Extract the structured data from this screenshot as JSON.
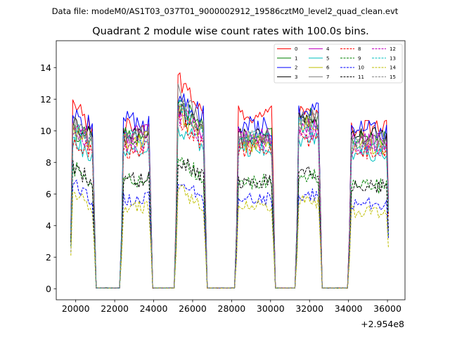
{
  "chart_data": {
    "type": "line",
    "suptitle": "Data file: modeM0/AS1T03_037T01_9000002912_19586cztM0_level2_quad_clean.evt",
    "title": "Quadrant 2 module wise count rates with 100.0s bins.",
    "x_offset_label": "+2.954e8",
    "xlim": [
      19000,
      36900
    ],
    "ylim": [
      -0.7,
      15.7
    ],
    "x_ticks": [
      20000,
      22000,
      24000,
      26000,
      28000,
      30000,
      32000,
      34000,
      36000
    ],
    "x_tick_labels": [
      "20000",
      "22000",
      "24000",
      "26000",
      "28000",
      "30000",
      "32000",
      "34000",
      "36000"
    ],
    "y_ticks": [
      0,
      2,
      4,
      6,
      8,
      10,
      12,
      14
    ],
    "y_tick_labels": [
      "0",
      "2",
      "4",
      "6",
      "8",
      "10",
      "12",
      "14"
    ],
    "bin_seconds": 100,
    "on_intervals": [
      [
        19750,
        20950
      ],
      [
        22350,
        23850
      ],
      [
        25100,
        26700
      ],
      [
        28200,
        30200
      ],
      [
        31300,
        32600
      ],
      [
        34050,
        36050
      ]
    ],
    "legend": {
      "position": "top-right",
      "columns": 4,
      "entries": [
        {
          "label": "0",
          "color": "#ff0000",
          "dash": false
        },
        {
          "label": "1",
          "color": "#008000",
          "dash": false
        },
        {
          "label": "2",
          "color": "#0000ff",
          "dash": false
        },
        {
          "label": "3",
          "color": "#000000",
          "dash": false
        },
        {
          "label": "4",
          "color": "#bf00bf",
          "dash": false
        },
        {
          "label": "5",
          "color": "#00bfbf",
          "dash": false
        },
        {
          "label": "6",
          "color": "#bfbf00",
          "dash": false
        },
        {
          "label": "7",
          "color": "#808080",
          "dash": false
        },
        {
          "label": "8",
          "color": "#ff0000",
          "dash": true
        },
        {
          "label": "9",
          "color": "#008000",
          "dash": true
        },
        {
          "label": "10",
          "color": "#0000ff",
          "dash": true
        },
        {
          "label": "11",
          "color": "#000000",
          "dash": true
        },
        {
          "label": "12",
          "color": "#bf00bf",
          "dash": true
        },
        {
          "label": "13",
          "color": "#00bfbf",
          "dash": true
        },
        {
          "label": "14",
          "color": "#bfbf00",
          "dash": true
        },
        {
          "label": "15",
          "color": "#808080",
          "dash": true
        }
      ]
    },
    "series": [
      {
        "name": "0",
        "color": "#ff0000",
        "dash": false,
        "levels": [
          12.4,
          9.7,
          10.2,
          13.6,
          10.2,
          11.0,
          11.0,
          10.5,
          10.1
        ]
      },
      {
        "name": "1",
        "color": "#008000",
        "dash": false,
        "levels": [
          10.0,
          9.6,
          9.7,
          12.0,
          9.5,
          9.6,
          10.8,
          10.2,
          9.4
        ]
      },
      {
        "name": "2",
        "color": "#0000ff",
        "dash": false,
        "levels": [
          11.0,
          10.2,
          10.6,
          12.4,
          10.4,
          10.3,
          11.2,
          10.6,
          10.1
        ]
      },
      {
        "name": "3",
        "color": "#000000",
        "dash": false,
        "levels": [
          10.6,
          9.4,
          9.6,
          11.4,
          9.5,
          9.6,
          10.5,
          9.9,
          9.7
        ]
      },
      {
        "name": "4",
        "color": "#bf00bf",
        "dash": false,
        "levels": [
          10.3,
          9.4,
          9.8,
          11.5,
          9.3,
          9.6,
          10.2,
          9.8,
          9.3
        ]
      },
      {
        "name": "5",
        "color": "#00bfbf",
        "dash": false,
        "levels": [
          9.2,
          8.5,
          8.7,
          10.4,
          8.6,
          8.9,
          9.6,
          9.1,
          8.6
        ]
      },
      {
        "name": "6",
        "color": "#bfbf00",
        "dash": false,
        "levels": [
          10.0,
          9.2,
          9.4,
          11.3,
          9.1,
          9.2,
          10.3,
          9.7,
          9.0
        ]
      },
      {
        "name": "7",
        "color": "#808080",
        "dash": false,
        "levels": [
          10.4,
          9.6,
          9.8,
          12.5,
          9.5,
          9.5,
          10.7,
          10.0,
          9.5
        ]
      },
      {
        "name": "8",
        "color": "#ff0000",
        "dash": true,
        "levels": [
          9.6,
          8.6,
          8.8,
          10.9,
          8.6,
          8.9,
          9.5,
          9.3,
          8.6
        ]
      },
      {
        "name": "9",
        "color": "#008000",
        "dash": true,
        "levels": [
          7.8,
          6.6,
          6.9,
          8.3,
          6.6,
          6.8,
          7.2,
          7.0,
          6.5
        ]
      },
      {
        "name": "10",
        "color": "#0000ff",
        "dash": true,
        "levels": [
          6.9,
          5.5,
          5.7,
          6.9,
          5.5,
          5.7,
          6.0,
          5.6,
          5.4
        ]
      },
      {
        "name": "11",
        "color": "#000000",
        "dash": true,
        "levels": [
          7.9,
          6.6,
          6.9,
          8.4,
          6.6,
          6.8,
          7.3,
          6.9,
          6.5
        ]
      },
      {
        "name": "12",
        "color": "#bf00bf",
        "dash": true,
        "levels": [
          9.9,
          9.0,
          9.2,
          11.2,
          8.9,
          9.2,
          9.9,
          9.6,
          8.8
        ]
      },
      {
        "name": "13",
        "color": "#00bfbf",
        "dash": true,
        "levels": [
          10.2,
          9.3,
          9.5,
          11.8,
          9.2,
          9.4,
          10.2,
          9.6,
          9.0
        ]
      },
      {
        "name": "14",
        "color": "#bfbf00",
        "dash": true,
        "levels": [
          6.1,
          5.0,
          5.2,
          6.4,
          4.9,
          5.2,
          5.5,
          5.2,
          4.9
        ]
      },
      {
        "name": "15",
        "color": "#808080",
        "dash": true,
        "levels": [
          10.3,
          9.4,
          9.7,
          11.9,
          9.3,
          9.5,
          10.5,
          9.9,
          9.3
        ]
      }
    ]
  }
}
